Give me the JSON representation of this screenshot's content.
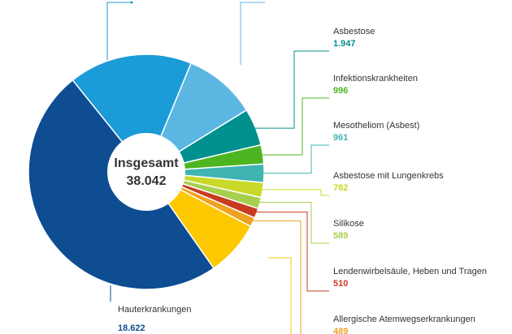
{
  "chart_data": {
    "type": "donut",
    "center_label": "Insgesamt",
    "total": 38042,
    "total_label": "38.042",
    "categories": [
      null,
      null,
      "Asbestose",
      "Infektionskrankheiten",
      "Mesotheliom (Asbest)",
      "Asbestose mit Lungenkrebs",
      "Silikose",
      "Lendenwirbelsäule, Heben und Tragen",
      "Allergische Atemwegserkrankungen",
      null,
      "Hauterkrankungen"
    ],
    "values": [
      6450,
      3800,
      1947,
      996,
      961,
      782,
      589,
      510,
      489,
      2896,
      18622
    ],
    "value_labels": [
      null,
      null,
      "1.947",
      "996",
      "961",
      "782",
      "589",
      "510",
      "489",
      null,
      "18.622"
    ],
    "colors": [
      "#1b9bd7",
      "#5cb6e2",
      "#00908e",
      "#4cb51f",
      "#40b3b3",
      "#c8d92a",
      "#a6cf4e",
      "#c93a1f",
      "#eea21f",
      "#fdc800",
      "#0e4d92"
    ]
  }
}
